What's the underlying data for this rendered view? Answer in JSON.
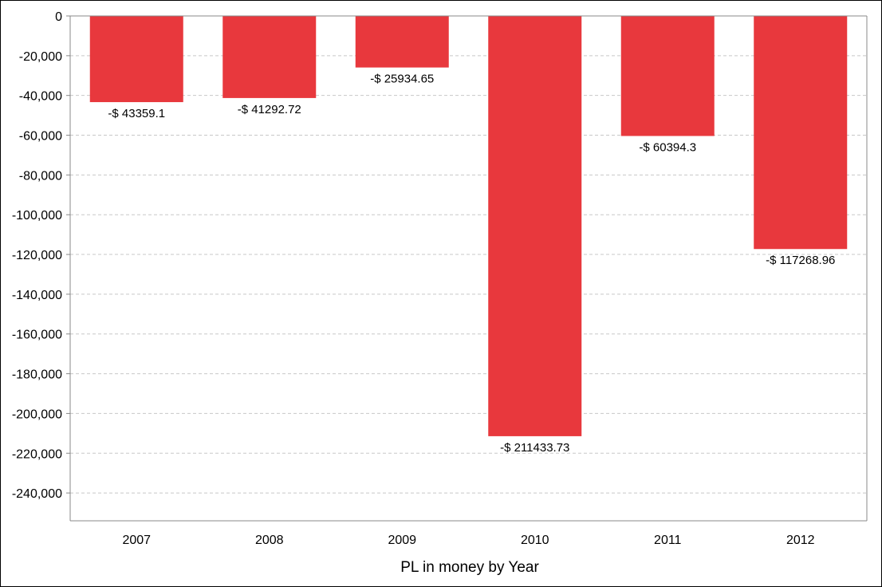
{
  "chart_data": {
    "type": "bar",
    "categories": [
      "2007",
      "2008",
      "2009",
      "2010",
      "2011",
      "2012"
    ],
    "values": [
      -43359.1,
      -41292.72,
      -25934.65,
      -211433.73,
      -60394.3,
      -117268.96
    ],
    "data_labels": [
      "-$ 43359.1",
      "-$ 41292.72",
      "-$ 25934.65",
      "-$ 211433.73",
      "-$ 60394.3",
      "-$ 117268.96"
    ],
    "title": "",
    "xlabel": "PL in money by Year",
    "ylabel": "",
    "ylim": [
      -254000,
      0
    ],
    "yticks": [
      0,
      -20000,
      -40000,
      -60000,
      -80000,
      -100000,
      -120000,
      -140000,
      -160000,
      -180000,
      -200000,
      -220000,
      -240000
    ],
    "ytick_labels": [
      "0",
      "-20,000",
      "-40,000",
      "-60,000",
      "-80,000",
      "-100,000",
      "-120,000",
      "-140,000",
      "-160,000",
      "-180,000",
      "-200,000",
      "-220,000",
      "-240,000"
    ],
    "grid": "horizontal dashed",
    "legend": "none",
    "colors": {
      "bar": "#e8383d",
      "grid": "#c8c8c8",
      "axis": "#888888"
    }
  }
}
